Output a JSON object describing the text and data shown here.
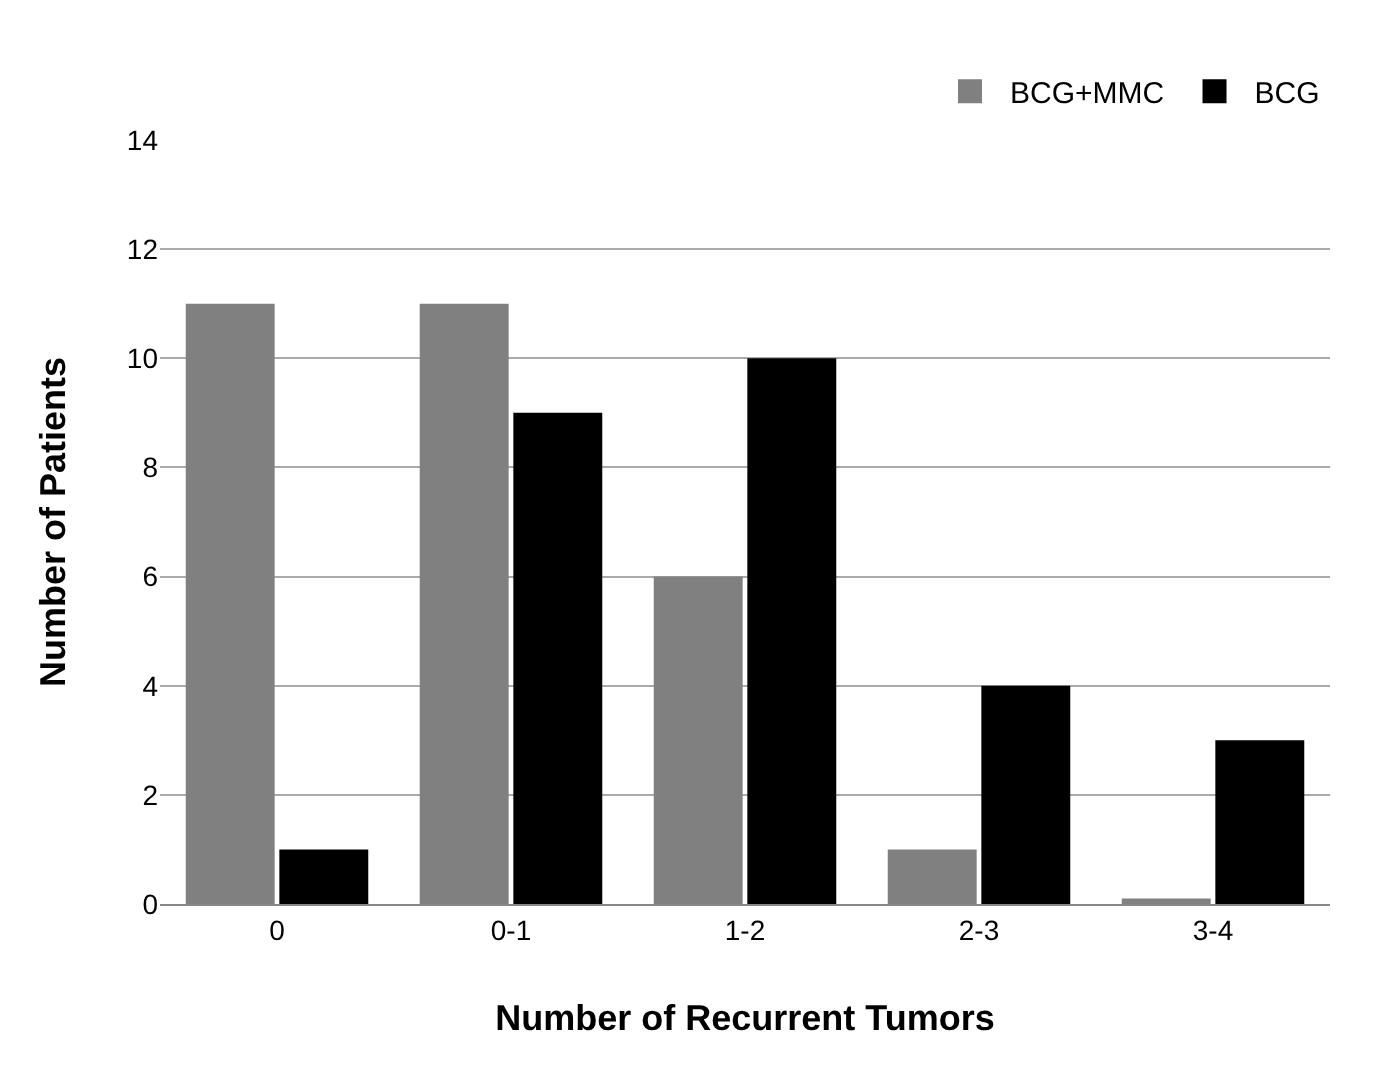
{
  "chart_data": {
    "type": "bar",
    "xlabel": "Number of Recurrent Tumors",
    "ylabel": "Number of Patients",
    "categories": [
      "0",
      "0-1",
      "1-2",
      "2-3",
      "3-4"
    ],
    "series": [
      {
        "name": "BCG+MMC",
        "color": "#808080",
        "values": [
          11,
          11,
          6,
          1,
          0.1
        ]
      },
      {
        "name": "BCG",
        "color": "#000000",
        "values": [
          1,
          9,
          10,
          4,
          3
        ]
      }
    ],
    "ylim": [
      0,
      14
    ],
    "yticks": [
      0,
      2,
      4,
      6,
      8,
      10,
      12,
      14
    ],
    "grid": "y",
    "legend": "top right"
  }
}
